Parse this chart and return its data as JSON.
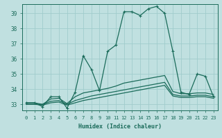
{
  "xlabel": "Humidex (Indice chaleur)",
  "bg_color": "#c0e0e0",
  "grid_color": "#a0cccc",
  "line_color": "#1a6b5a",
  "xlim": [
    -0.5,
    23.5
  ],
  "ylim": [
    32.6,
    39.6
  ],
  "yticks": [
    33,
    34,
    35,
    36,
    37,
    38,
    39
  ],
  "xticks": [
    0,
    1,
    2,
    3,
    4,
    5,
    6,
    7,
    8,
    9,
    10,
    11,
    12,
    13,
    14,
    15,
    16,
    17,
    18,
    19,
    20,
    21,
    22,
    23
  ],
  "series": [
    [
      33.1,
      33.1,
      32.85,
      33.5,
      33.5,
      32.75,
      33.8,
      36.2,
      35.3,
      33.9,
      36.5,
      36.9,
      39.1,
      39.1,
      38.85,
      39.3,
      39.45,
      39.0,
      36.5,
      33.8,
      33.65,
      35.0,
      34.85,
      33.5
    ],
    [
      33.1,
      33.1,
      33.0,
      33.35,
      33.4,
      33.05,
      33.5,
      33.75,
      33.85,
      33.95,
      34.05,
      34.2,
      34.4,
      34.5,
      34.6,
      34.7,
      34.8,
      34.9,
      33.85,
      33.7,
      33.7,
      33.75,
      33.75,
      33.65
    ],
    [
      33.0,
      33.0,
      33.0,
      33.2,
      33.25,
      33.0,
      33.25,
      33.4,
      33.55,
      33.65,
      33.75,
      33.85,
      33.95,
      34.05,
      34.15,
      34.25,
      34.35,
      34.45,
      33.65,
      33.55,
      33.55,
      33.6,
      33.6,
      33.5
    ],
    [
      33.0,
      33.0,
      32.95,
      33.1,
      33.15,
      32.95,
      33.1,
      33.25,
      33.35,
      33.45,
      33.55,
      33.65,
      33.75,
      33.85,
      33.95,
      34.05,
      34.15,
      34.25,
      33.55,
      33.45,
      33.45,
      33.5,
      33.5,
      33.4
    ]
  ],
  "marker": "+",
  "markersize": 3.5,
  "markeredgewidth": 0.8,
  "linewidth": 0.9,
  "tick_labelsize": 5.0,
  "xlabel_fontsize": 6.0
}
